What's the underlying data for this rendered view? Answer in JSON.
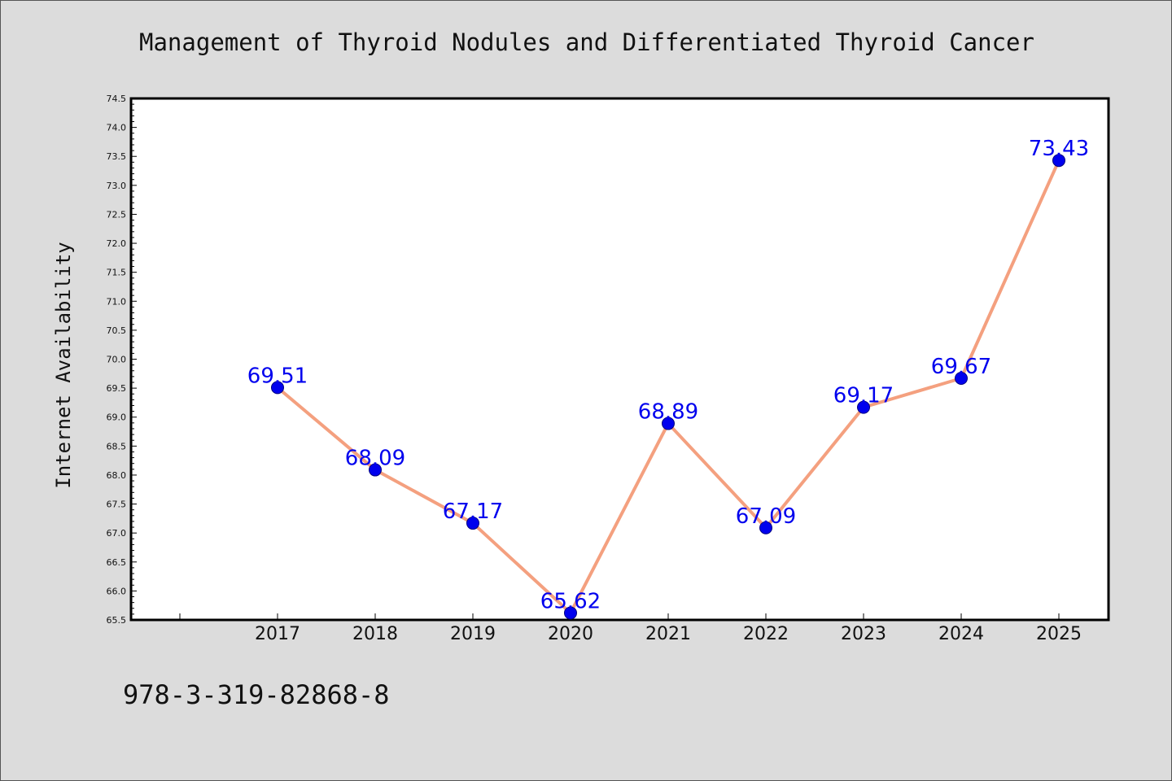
{
  "chart_data": {
    "type": "line",
    "title": "Management of Thyroid Nodules and Differentiated Thyroid Cancer",
    "xlabel": "",
    "ylabel": "Internet Availability",
    "categories": [
      "2017",
      "2018",
      "2019",
      "2020",
      "2021",
      "2022",
      "2023",
      "2024",
      "2025"
    ],
    "series": [
      {
        "values": [
          69.51,
          68.09,
          67.17,
          65.62,
          68.89,
          67.09,
          69.17,
          69.67,
          73.43
        ]
      }
    ],
    "data_labels": [
      "69.51",
      "68.09",
      "67.17",
      "65.62",
      "68.89",
      "67.09",
      "69.17",
      "69.67",
      "73.43"
    ],
    "ylim": [
      65.5,
      74.5
    ],
    "yticks": [
      "65.5",
      "66.0",
      "66.5",
      "67.0",
      "67.5",
      "68.0",
      "68.5",
      "69.0",
      "69.5",
      "70.0",
      "70.5",
      "71.0",
      "71.5",
      "72.0",
      "72.5",
      "73.0",
      "73.5",
      "74.0",
      "74.5"
    ],
    "grid": false,
    "legend": "none",
    "colors": {
      "line": "#f4a07f",
      "marker": "#0000ee",
      "marker_edge": "#000080",
      "data_label": "#0000ee",
      "background": "#dcdcdc",
      "plot_background": "#ffffff"
    }
  },
  "footer": {
    "code": "978-3-319-82868-8"
  }
}
